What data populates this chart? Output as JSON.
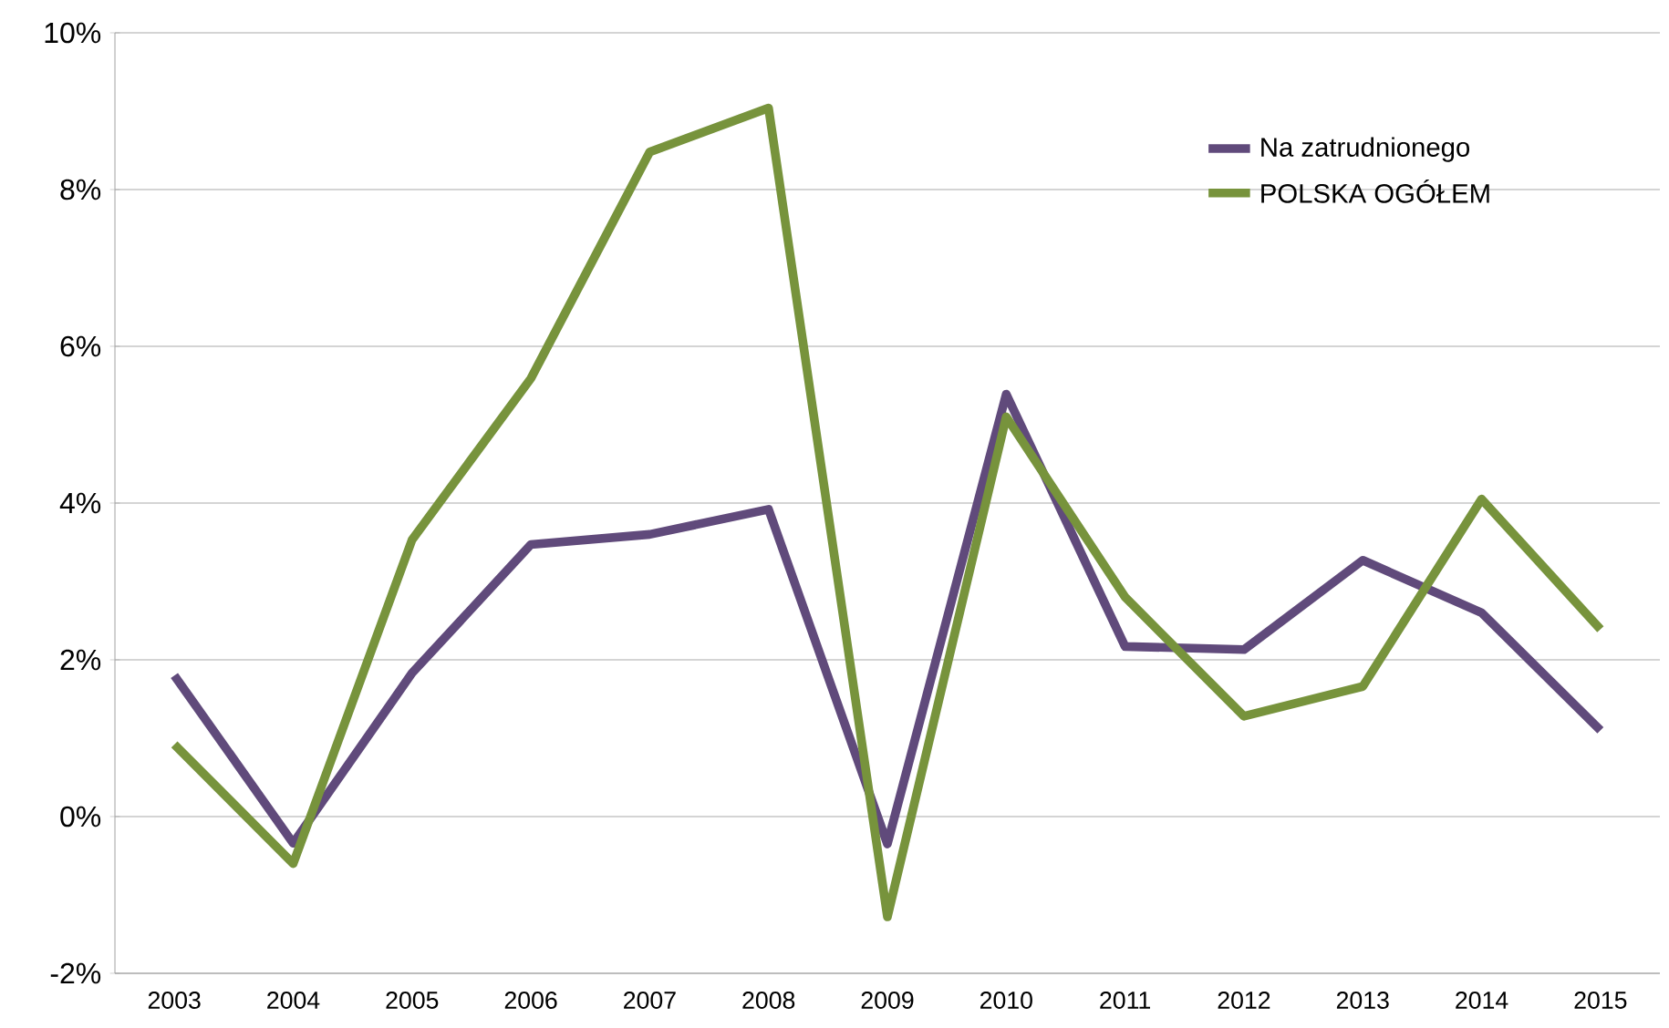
{
  "chart_data": {
    "type": "line",
    "categories": [
      "2003",
      "2004",
      "2005",
      "2006",
      "2007",
      "2008",
      "2009",
      "2010",
      "2011",
      "2012",
      "2013",
      "2014",
      "2015"
    ],
    "series": [
      {
        "name": "Na zatrudnionego",
        "color": "#604a7b",
        "values": [
          1.8,
          -0.34,
          1.83,
          3.47,
          3.6,
          3.92,
          -0.35,
          5.39,
          2.17,
          2.13,
          3.27,
          2.6,
          1.1
        ]
      },
      {
        "name": "POLSKA OGÓŁEM",
        "color": "#77933c",
        "values": [
          0.92,
          -0.6,
          3.53,
          5.59,
          8.48,
          9.04,
          -1.28,
          5.1,
          2.8,
          1.28,
          1.66,
          4.05,
          2.39
        ]
      }
    ],
    "ylim": [
      -2,
      10
    ],
    "yticks": [
      {
        "value": -2,
        "label": "-2%"
      },
      {
        "value": 0,
        "label": "0%"
      },
      {
        "value": 2,
        "label": "2%"
      },
      {
        "value": 4,
        "label": "4%"
      },
      {
        "value": 6,
        "label": "6%"
      },
      {
        "value": 8,
        "label": "8%"
      },
      {
        "value": 10,
        "label": "10%"
      }
    ],
    "grid": "y",
    "legend": "top right",
    "marker": "none",
    "line_style": "solid"
  }
}
